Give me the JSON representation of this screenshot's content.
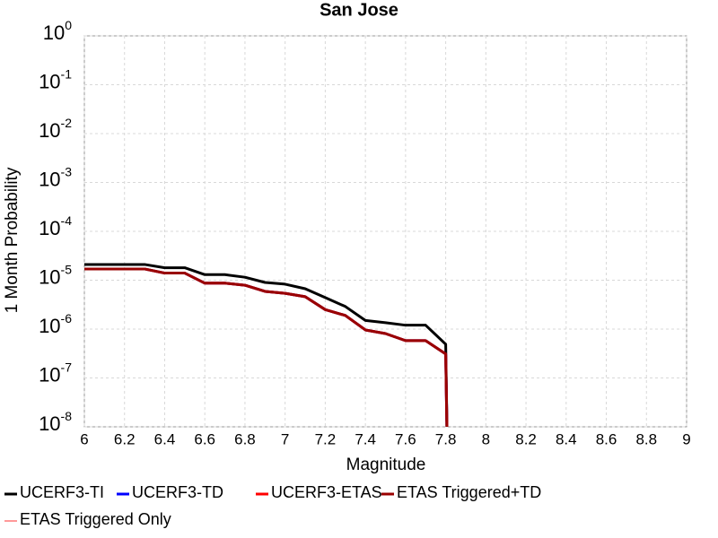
{
  "chart_data": {
    "type": "line",
    "title": "San Jose",
    "xlabel": "Magnitude",
    "ylabel": "1 Month Probability",
    "yscale": "log",
    "grid": true,
    "legend": "bottom",
    "x": [
      6.0,
      6.1,
      6.2,
      6.3,
      6.4,
      6.5,
      6.6,
      6.7,
      6.8,
      6.9,
      7.0,
      7.1,
      7.2,
      7.3,
      7.4,
      7.5,
      7.6,
      7.7,
      7.8,
      7.81
    ],
    "series": [
      {
        "name": "UCERF3-TI",
        "color": "#000000",
        "values": [
          2.1e-05,
          2.1e-05,
          2.1e-05,
          2.1e-05,
          1.8e-05,
          1.8e-05,
          1.3e-05,
          1.3e-05,
          1.15e-05,
          9e-06,
          8.3e-06,
          6.7e-06,
          4.4e-06,
          2.9e-06,
          1.5e-06,
          1.35e-06,
          1.2e-06,
          1.2e-06,
          4.9e-07,
          1e-09
        ]
      },
      {
        "name": "UCERF3-TD",
        "color": "#0000ff",
        "values": [
          1.7e-05,
          1.7e-05,
          1.7e-05,
          1.7e-05,
          1.4e-05,
          1.4e-05,
          8.7e-06,
          8.7e-06,
          7.9e-06,
          5.9e-06,
          5.4e-06,
          4.6e-06,
          2.5e-06,
          1.9e-06,
          9.6e-07,
          8.1e-07,
          5.8e-07,
          5.8e-07,
          3.1e-07,
          1e-09
        ]
      },
      {
        "name": "UCERF3-ETAS",
        "color": "#ff0000",
        "values": [
          1.7e-05,
          1.7e-05,
          1.7e-05,
          1.7e-05,
          1.4e-05,
          1.4e-05,
          8.7e-06,
          8.7e-06,
          7.9e-06,
          5.9e-06,
          5.4e-06,
          4.6e-06,
          2.5e-06,
          1.9e-06,
          9.6e-07,
          8.1e-07,
          5.8e-07,
          5.8e-07,
          3.1e-07,
          1e-09
        ]
      },
      {
        "name": "ETAS Triggered+TD",
        "color": "#990000",
        "values": [
          1.7e-05,
          1.7e-05,
          1.7e-05,
          1.7e-05,
          1.4e-05,
          1.4e-05,
          8.7e-06,
          8.7e-06,
          7.9e-06,
          5.9e-06,
          5.4e-06,
          4.6e-06,
          2.5e-06,
          1.9e-06,
          9.6e-07,
          8.1e-07,
          5.8e-07,
          5.8e-07,
          3.1e-07,
          1e-09
        ]
      },
      {
        "name": "ETAS Triggered Only",
        "color": "#ff9999",
        "values": [
          null,
          null,
          null,
          null,
          null,
          null,
          null,
          null,
          null,
          null,
          null,
          null,
          null,
          null,
          null,
          null,
          null,
          null,
          null,
          null
        ]
      }
    ],
    "xlim": [
      6,
      9
    ],
    "xticks": [
      6,
      6.2,
      6.4,
      6.6,
      6.8,
      7,
      7.2,
      7.4,
      7.6,
      7.8,
      8,
      8.2,
      8.4,
      8.6,
      8.8,
      9
    ],
    "ylim": [
      1e-08,
      1
    ],
    "yticks": [
      {
        "value": 1,
        "label": "10",
        "exponent": "0"
      },
      {
        "value": 0.1,
        "label": "10",
        "exponent": "-1"
      },
      {
        "value": 0.01,
        "label": "10",
        "exponent": "-2"
      },
      {
        "value": 0.001,
        "label": "10",
        "exponent": "-3"
      },
      {
        "value": 0.0001,
        "label": "10",
        "exponent": "-4"
      },
      {
        "value": 1e-05,
        "label": "10",
        "exponent": "-5"
      },
      {
        "value": 1e-06,
        "label": "10",
        "exponent": "-6"
      },
      {
        "value": 1e-07,
        "label": "10",
        "exponent": "-7"
      },
      {
        "value": 1e-08,
        "label": "10",
        "exponent": "-8"
      }
    ]
  }
}
